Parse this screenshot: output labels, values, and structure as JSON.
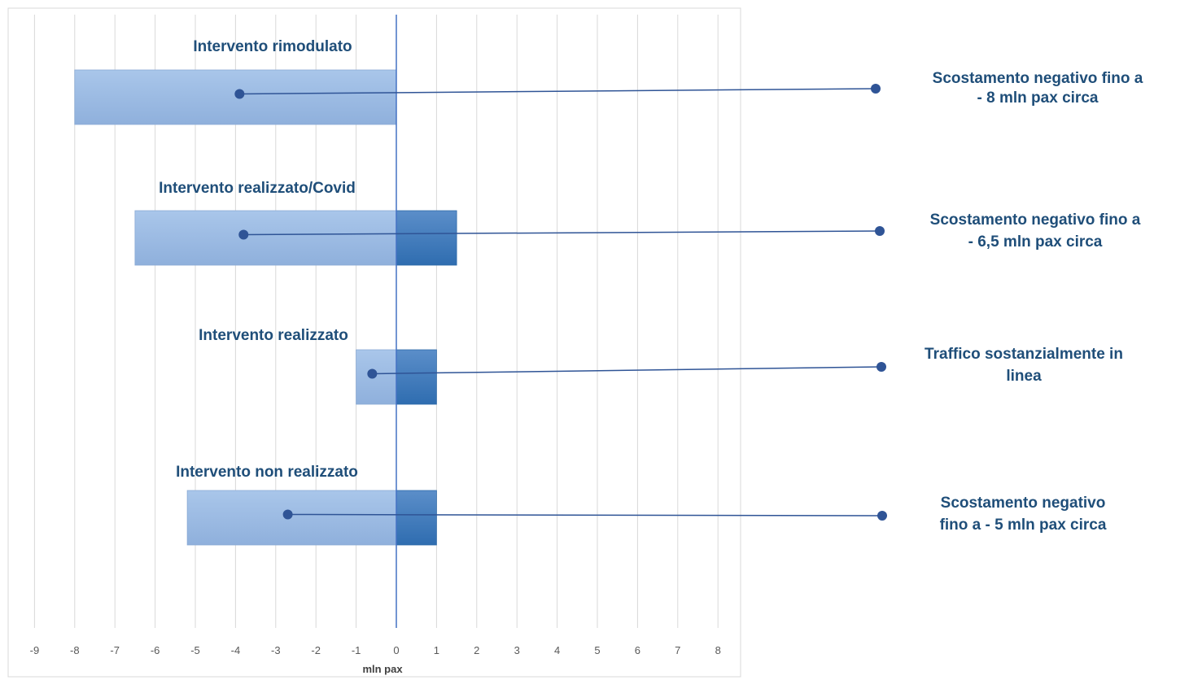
{
  "chart_data": {
    "type": "bar",
    "orientation": "horizontal",
    "xlabel": "mln pax",
    "xlim": [
      -9,
      8
    ],
    "xticks": [
      -9,
      -8,
      -7,
      -6,
      -5,
      -4,
      -3,
      -2,
      -1,
      0,
      1,
      2,
      3,
      4,
      5,
      6,
      7,
      8
    ],
    "grid": true,
    "categories": [
      "Intervento rimodulato",
      "Intervento realizzato/Covid",
      "Intervento realizzato",
      "Intervento non realizzato"
    ],
    "series": [
      {
        "values": [
          -8,
          -6.5,
          -1,
          -5.2
        ],
        "color": "#9dbde6"
      },
      {
        "values": [
          0,
          1.5,
          1,
          1
        ],
        "color": "#3f7fc0"
      }
    ],
    "annotations": [
      {
        "category": "Intervento rimodulato",
        "point_x": -3.9,
        "lines": [
          "Scostamento negativo fino a",
          "- 8 mln pax circa"
        ]
      },
      {
        "category": "Intervento realizzato/Covid",
        "point_x": -3.8,
        "lines": [
          "Scostamento negativo fino a",
          "- 6,5 mln pax circa"
        ]
      },
      {
        "category": "Intervento realizzato",
        "point_x": -0.6,
        "lines": [
          "Traffico sostanzialmente in",
          "linea"
        ]
      },
      {
        "category": "Intervento non realizzato",
        "point_x": -2.7,
        "lines": [
          "Scostamento negativo",
          "fino a - 5 mln pax circa"
        ]
      }
    ],
    "colors": {
      "label": "#1f4e79",
      "connector": "#2f5496",
      "zero_line": "#4472c4",
      "grid": "#d9d9d9"
    }
  }
}
